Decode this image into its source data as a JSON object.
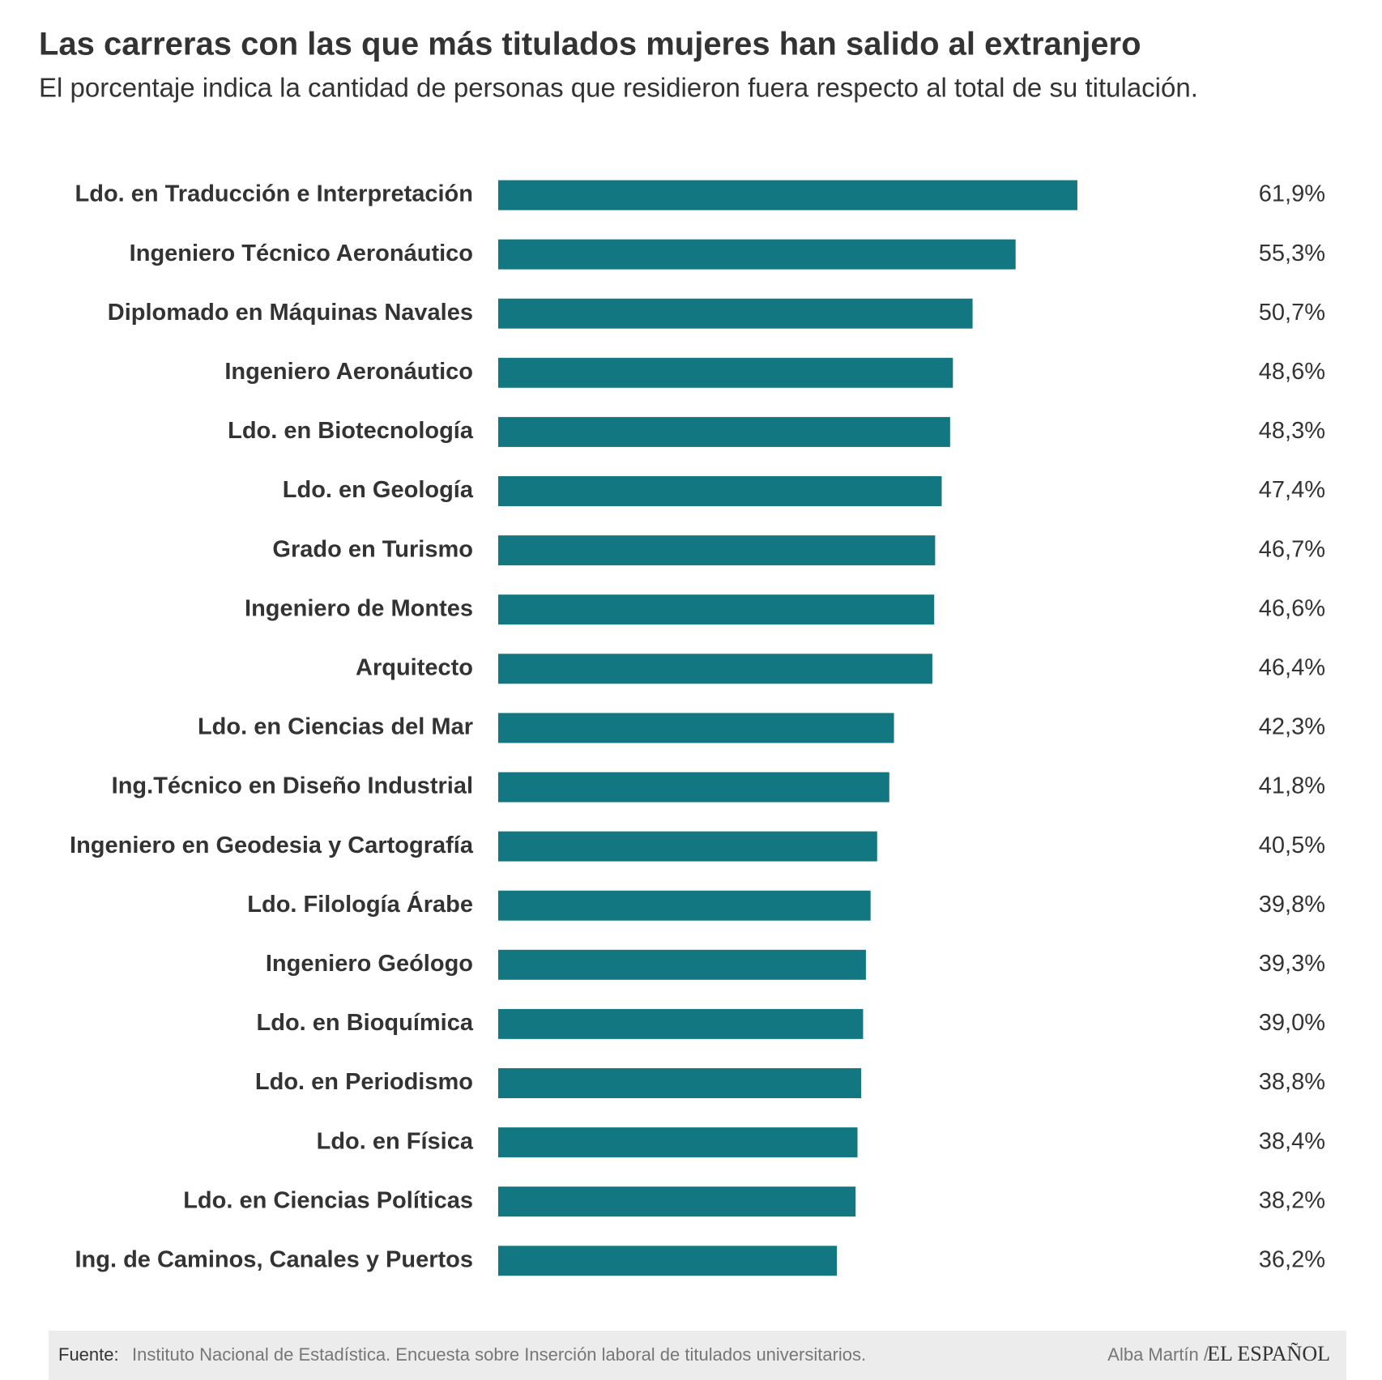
{
  "chart_data": {
    "type": "bar",
    "orientation": "horizontal",
    "title": "Las carreras con las que más titulados mujeres han salido al extranjero",
    "subtitle": "El porcentaje indica la cantidad de personas que residieron fuera respecto al total de su titulación.",
    "categories": [
      "Ldo. en Traducción e Interpretación",
      "Ingeniero Técnico Aeronáutico",
      "Diplomado en Máquinas Navales",
      "Ingeniero Aeronáutico",
      "Ldo. en Biotecnología",
      "Ldo. en Geología",
      "Grado en Turismo",
      "Ingeniero de Montes",
      "Arquitecto",
      "Ldo. en Ciencias del Mar",
      "Ing.Técnico en Diseño Industrial",
      "Ingeniero en Geodesia y Cartografía",
      "Ldo. Filología Árabe",
      "Ingeniero Geólogo",
      "Ldo. en Bioquímica",
      "Ldo. en Periodismo",
      "Ldo. en Física",
      "Ldo. en Ciencias Políticas",
      "Ing. de Caminos, Canales y Puertos"
    ],
    "values": [
      61.9,
      55.3,
      50.7,
      48.6,
      48.3,
      47.4,
      46.7,
      46.6,
      46.4,
      42.3,
      41.8,
      40.5,
      39.8,
      39.3,
      39.0,
      38.8,
      38.4,
      38.2,
      36.2
    ],
    "value_labels": [
      "61,9%",
      "55,3%",
      "50,7%",
      "48,6%",
      "48,3%",
      "47,4%",
      "46,7%",
      "46,6%",
      "46,4%",
      "42,3%",
      "41,8%",
      "40,5%",
      "39,8%",
      "39,3%",
      "39,0%",
      "38,8%",
      "38,4%",
      "38,2%",
      "36,2%"
    ],
    "color": "#127780",
    "source_label": "Fuente:",
    "source": "Instituto Nacional de Estadística. Encuesta sobre Inserción laboral de titulados universitarios.",
    "author": "Alba Martín /",
    "logo": "EL ESPAÑOL"
  }
}
